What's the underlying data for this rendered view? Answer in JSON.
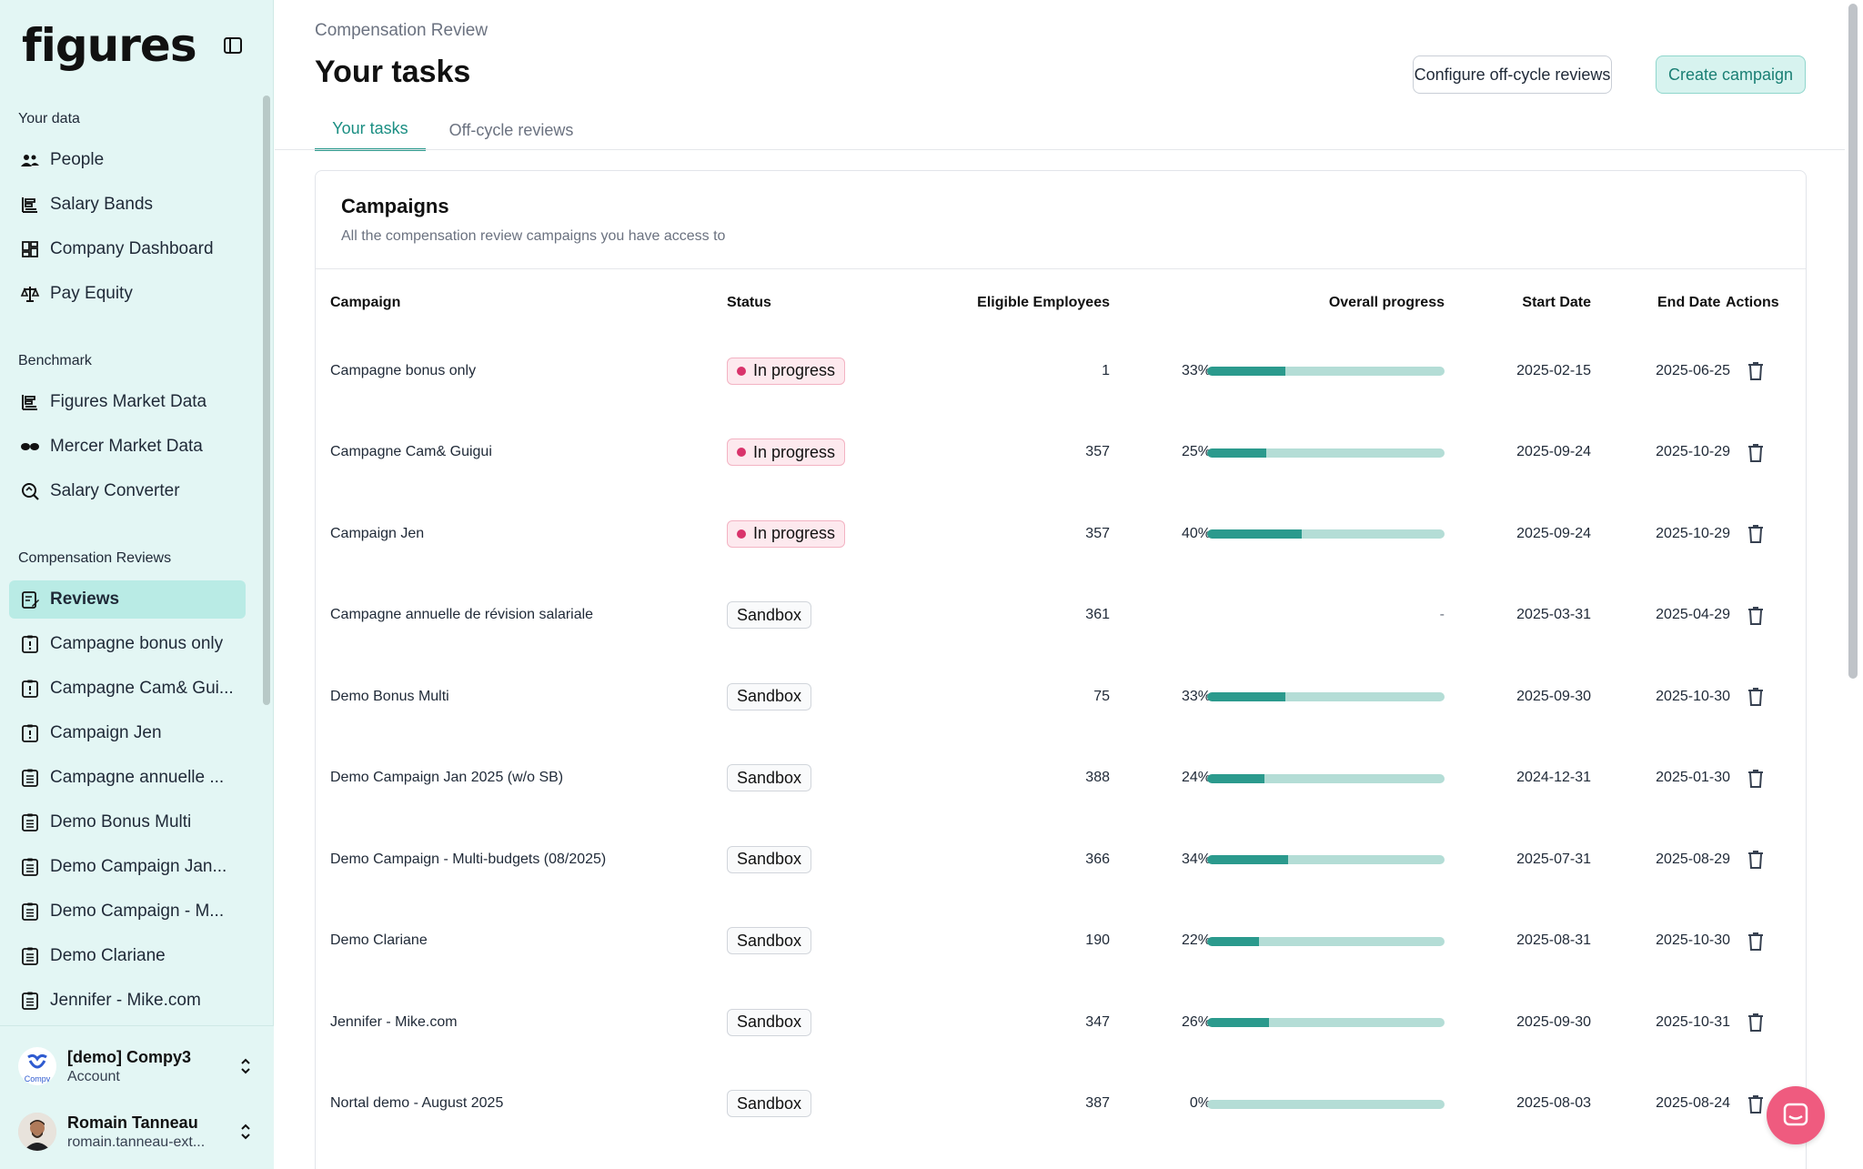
{
  "sidebar": {
    "logo": "figures",
    "sections": [
      {
        "title": "Your data",
        "items": [
          {
            "label": "People",
            "icon": "people-icon"
          },
          {
            "label": "Salary Bands",
            "icon": "salary-bands-icon"
          },
          {
            "label": "Company Dashboard",
            "icon": "dashboard-icon"
          },
          {
            "label": "Pay Equity",
            "icon": "scale-icon"
          }
        ]
      },
      {
        "title": "Benchmark",
        "items": [
          {
            "label": "Figures Market Data",
            "icon": "market-data-icon"
          },
          {
            "label": "Mercer Market Data",
            "icon": "mercer-icon"
          },
          {
            "label": "Salary Converter",
            "icon": "converter-icon"
          }
        ]
      },
      {
        "title": "Compensation Reviews",
        "items": [
          {
            "label": "Reviews",
            "icon": "reviews-icon"
          },
          {
            "label": "Campagne bonus only",
            "icon": "campaign-alert-icon"
          },
          {
            "label": "Campagne Cam& Gui...",
            "icon": "campaign-alert-icon"
          },
          {
            "label": "Campaign Jen",
            "icon": "campaign-alert-icon"
          },
          {
            "label": "Campagne annuelle ...",
            "icon": "campaign-list-icon"
          },
          {
            "label": "Demo Bonus Multi",
            "icon": "campaign-list-icon"
          },
          {
            "label": "Demo Campaign Jan...",
            "icon": "campaign-list-icon"
          },
          {
            "label": "Demo Campaign - M...",
            "icon": "campaign-list-icon"
          },
          {
            "label": "Demo Clariane",
            "icon": "campaign-list-icon"
          },
          {
            "label": "Jennifer - Mike.com",
            "icon": "campaign-list-icon"
          }
        ]
      }
    ],
    "account": {
      "name": "[demo] Compy3",
      "sub": "Account",
      "logo_text": "Compy"
    },
    "user": {
      "name": "Romain Tanneau",
      "email": "romain.tanneau-ext..."
    }
  },
  "header": {
    "breadcrumb": "Compensation Review",
    "title": "Your tasks",
    "configure_button": "Configure off-cycle reviews",
    "create_button": "Create campaign"
  },
  "tabs": [
    {
      "label": "Your tasks",
      "active": true
    },
    {
      "label": "Off-cycle reviews",
      "active": false
    }
  ],
  "campaigns_card": {
    "title": "Campaigns",
    "subtitle": "All the compensation review campaigns you have access to",
    "columns": [
      "Campaign",
      "Status",
      "Eligible Employees",
      "Overall progress",
      "Start Date",
      "End Date",
      "Actions"
    ],
    "rows": [
      {
        "name": "Campagne bonus only",
        "status": "In progress",
        "eligible": "1",
        "progress": "33%",
        "progress_value": 33,
        "start": "2025-02-15",
        "end": "2025-06-25"
      },
      {
        "name": "Campagne Cam& Guigui",
        "status": "In progress",
        "eligible": "357",
        "progress": "25%",
        "progress_value": 25,
        "start": "2025-09-24",
        "end": "2025-10-29"
      },
      {
        "name": "Campaign Jen",
        "status": "In progress",
        "eligible": "357",
        "progress": "40%",
        "progress_value": 40,
        "start": "2025-09-24",
        "end": "2025-10-29"
      },
      {
        "name": "Campagne annuelle de révision salariale",
        "status": "Sandbox",
        "eligible": "361",
        "progress": "-",
        "progress_value": null,
        "start": "2025-03-31",
        "end": "2025-04-29"
      },
      {
        "name": "Demo Bonus Multi",
        "status": "Sandbox",
        "eligible": "75",
        "progress": "33%",
        "progress_value": 33,
        "start": "2025-09-30",
        "end": "2025-10-30"
      },
      {
        "name": "Demo Campaign Jan 2025 (w/o SB)",
        "status": "Sandbox",
        "eligible": "388",
        "progress": "24%",
        "progress_value": 24,
        "start": "2024-12-31",
        "end": "2025-01-30"
      },
      {
        "name": "Demo Campaign - Multi-budgets (08/2025)",
        "status": "Sandbox",
        "eligible": "366",
        "progress": "34%",
        "progress_value": 34,
        "start": "2025-07-31",
        "end": "2025-08-29"
      },
      {
        "name": "Demo Clariane",
        "status": "Sandbox",
        "eligible": "190",
        "progress": "22%",
        "progress_value": 22,
        "start": "2025-08-31",
        "end": "2025-10-30"
      },
      {
        "name": "Jennifer - Mike.com",
        "status": "Sandbox",
        "eligible": "347",
        "progress": "26%",
        "progress_value": 26,
        "start": "2025-09-30",
        "end": "2025-10-31"
      },
      {
        "name": "Nortal demo - August 2025",
        "status": "Sandbox",
        "eligible": "387",
        "progress": "0%",
        "progress_value": 0,
        "start": "2025-08-03",
        "end": "2025-08-24"
      }
    ]
  },
  "colors": {
    "accent": "#2b9a8d",
    "accent_light": "#b4ddd6",
    "sidebar_bg": "#e3f6f4",
    "in_progress_dot": "#d9336b",
    "chat_bubble": "#ef5b7f"
  }
}
